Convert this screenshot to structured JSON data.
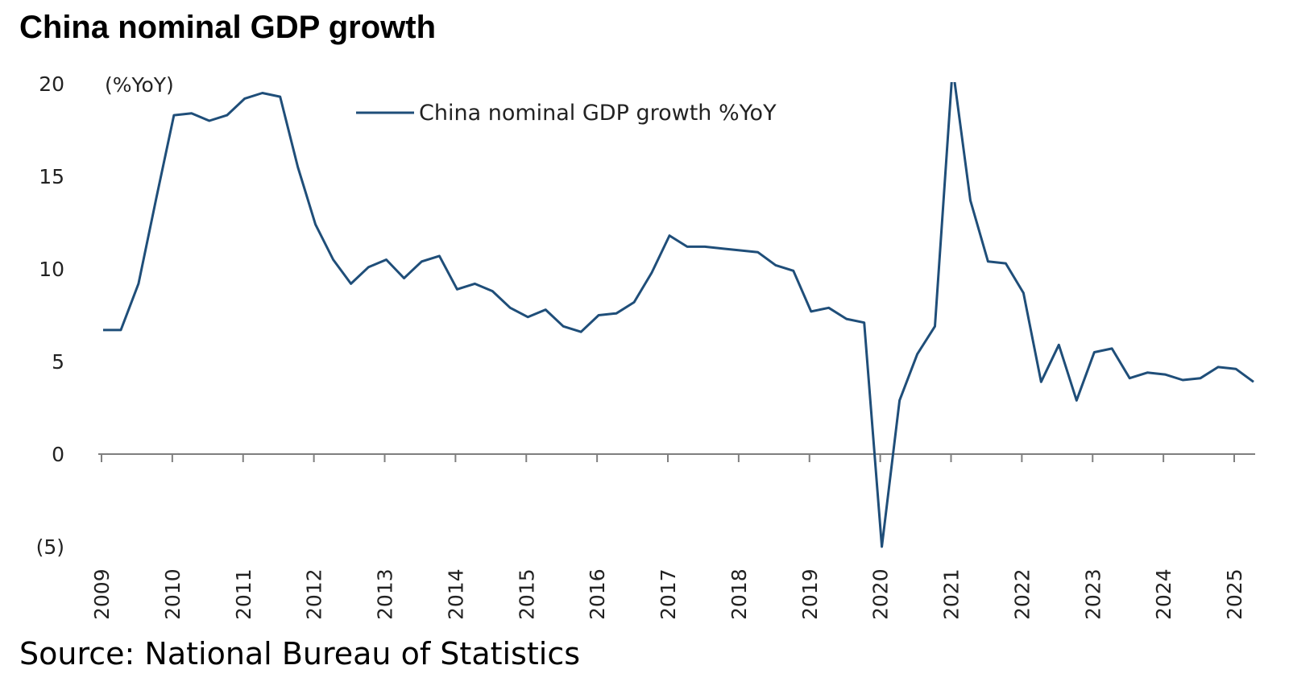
{
  "chart_data": {
    "type": "line",
    "title": "China nominal GDP growth",
    "unit_label": "(%YoY)",
    "source": "Source: National Bureau of Statistics",
    "legend": "China nominal GDP growth %YoY",
    "legend_position": "top-center",
    "line_color": "#1f4e79",
    "ylim": [
      -5,
      20
    ],
    "yticks": [
      {
        "value": 20,
        "label": "20"
      },
      {
        "value": 15,
        "label": "15"
      },
      {
        "value": 10,
        "label": "10"
      },
      {
        "value": 5,
        "label": "5"
      },
      {
        "value": 0,
        "label": "0"
      },
      {
        "value": -5,
        "label": "(5)"
      }
    ],
    "xticks": [
      "2009",
      "2010",
      "2011",
      "2012",
      "2013",
      "2014",
      "2015",
      "2016",
      "2017",
      "2018",
      "2019",
      "2020",
      "2021",
      "2022",
      "2023",
      "2024",
      "2025"
    ],
    "grid": false,
    "series": [
      {
        "name": "China nominal GDP growth %YoY",
        "values": [
          6.7,
          6.7,
          9.2,
          13.8,
          18.3,
          18.4,
          18.0,
          18.3,
          19.2,
          19.5,
          19.3,
          15.5,
          12.4,
          10.5,
          9.2,
          10.1,
          10.5,
          9.5,
          10.4,
          10.7,
          8.9,
          9.2,
          8.8,
          7.9,
          7.4,
          7.8,
          6.9,
          6.6,
          7.5,
          7.6,
          8.2,
          9.8,
          11.8,
          11.2,
          11.2,
          11.1,
          11.0,
          10.9,
          10.2,
          9.9,
          7.7,
          7.9,
          7.3,
          7.1,
          -5.0,
          2.9,
          5.4,
          6.9,
          20.9,
          13.7,
          10.4,
          10.3,
          8.7,
          3.9,
          5.9,
          2.9,
          5.5,
          5.7,
          4.1,
          4.4,
          4.3,
          4.0,
          4.1,
          4.7,
          4.6,
          3.9
        ]
      }
    ]
  }
}
